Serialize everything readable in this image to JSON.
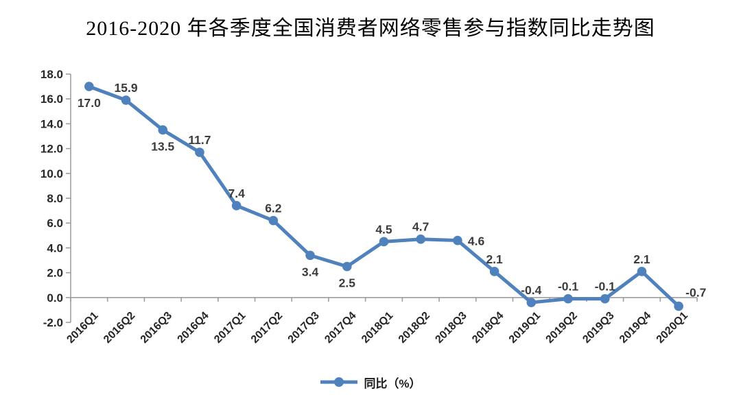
{
  "colors": {
    "line": "#4F81BD",
    "marker": "#4F81BD",
    "axis": "#9E9E9E",
    "data_label": "#3B3B3B",
    "tick_label": "#262626"
  },
  "chart_data": {
    "type": "line",
    "title": "2016-2020 年各季度全国消费者网络零售参与指数同比走势图",
    "categories": [
      "2016Q1",
      "2016Q2",
      "2016Q3",
      "2016Q4",
      "2017Q1",
      "2017Q2",
      "2017Q3",
      "2017Q4",
      "2018Q1",
      "2018Q2",
      "2018Q3",
      "2018Q4",
      "2019Q1",
      "2019Q2",
      "2019Q3",
      "2019Q4",
      "2020Q1"
    ],
    "series": [
      {
        "name": "同比（%）",
        "values": [
          17.0,
          15.9,
          13.5,
          11.7,
          7.4,
          6.2,
          3.4,
          2.5,
          4.5,
          4.7,
          4.6,
          2.1,
          -0.4,
          -0.1,
          -0.1,
          2.1,
          -0.7
        ]
      }
    ],
    "data_labels": [
      "17.0",
      "15.9",
      "13.5",
      "11.7",
      "7.4",
      "6.2",
      "3.4",
      "2.5",
      "4.5",
      "4.7",
      "4.6",
      "2.1",
      "-0.4",
      "-0.1",
      "-0.1",
      "2.1",
      "-0.7"
    ],
    "data_label_positions": [
      "below",
      "above",
      "below",
      "above",
      "above",
      "above",
      "below",
      "below",
      "above",
      "above",
      "right",
      "above",
      "above",
      "above",
      "above",
      "above",
      "above-right"
    ],
    "xlabel": "",
    "ylabel": "",
    "ylim": [
      -2.0,
      18.0
    ],
    "ytick_step": 2.0,
    "yticks": [
      "18.0",
      "16.0",
      "14.0",
      "12.0",
      "10.0",
      "8.0",
      "6.0",
      "4.0",
      "2.0",
      "0.0",
      "-2.0"
    ],
    "grid": false,
    "marker": "circle",
    "legend_position": "bottom"
  }
}
